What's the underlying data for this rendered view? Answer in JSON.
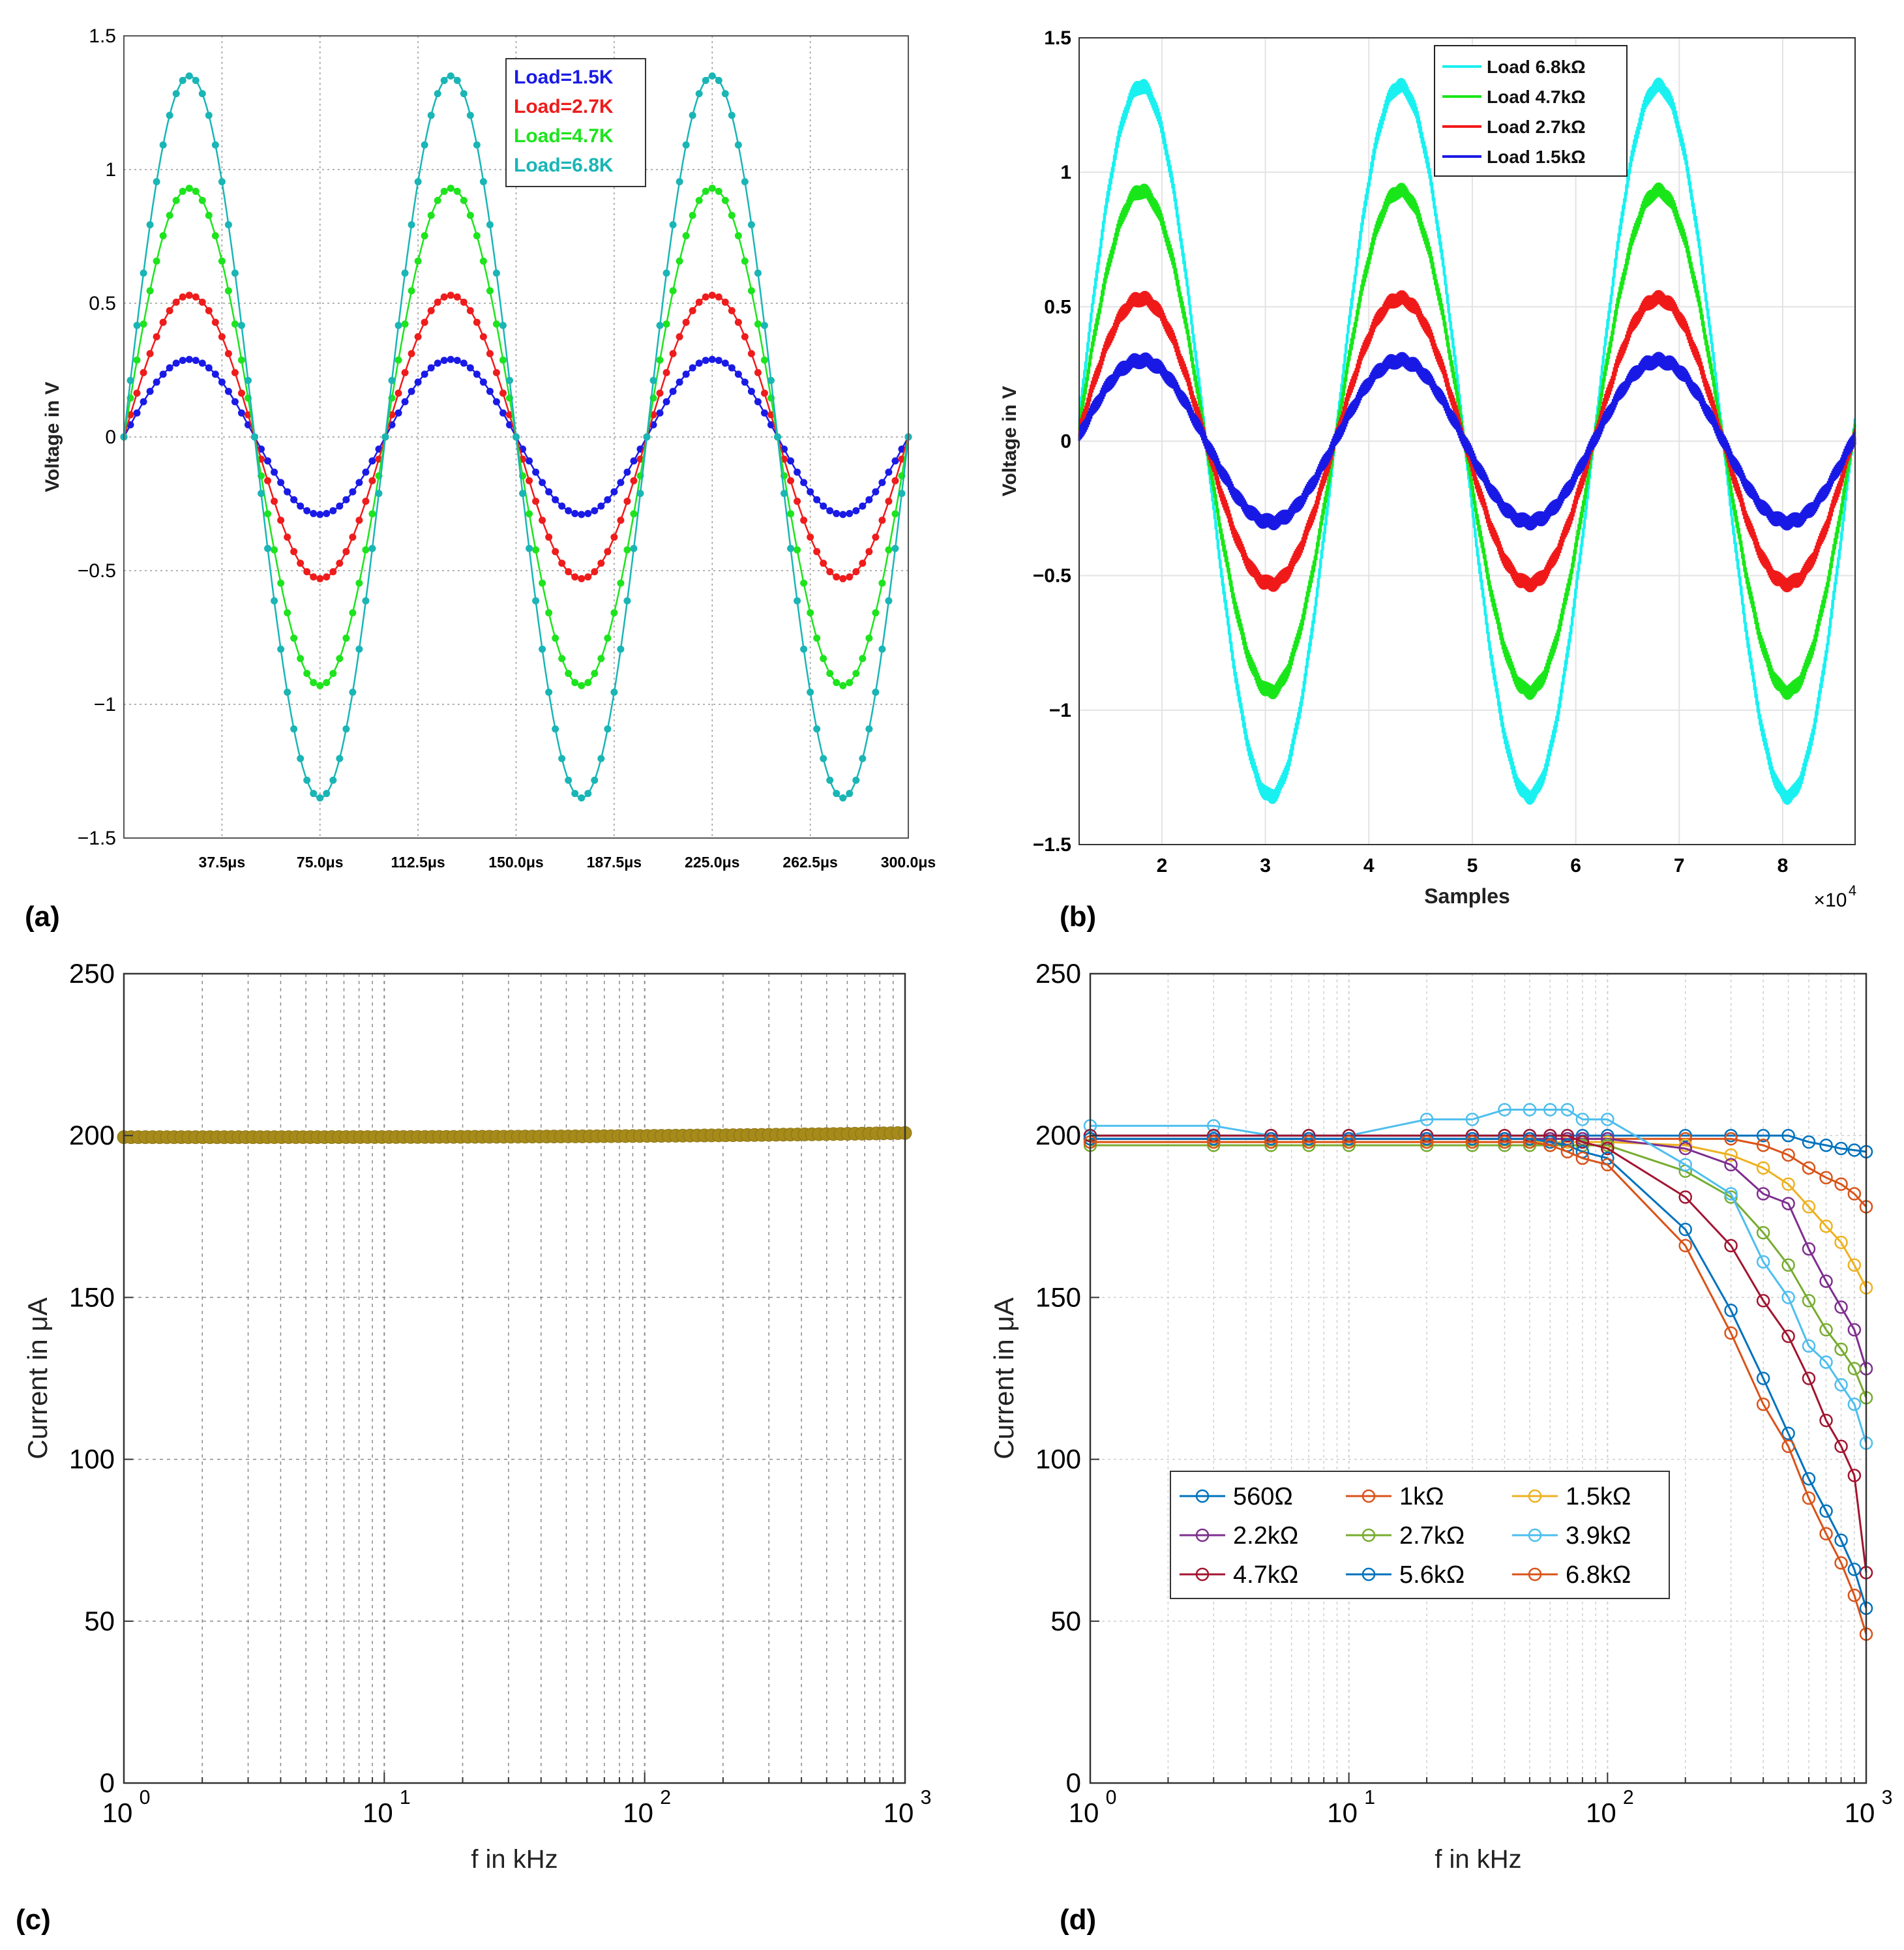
{
  "chart_data": [
    {
      "panel": "(a)",
      "type": "line",
      "title": "",
      "xlabel": "",
      "ylabel": "Voltage in V",
      "xlim": [
        0,
        300
      ],
      "ylim": [
        -1.5,
        1.5
      ],
      "x_ticks": [
        37.5,
        75,
        112.5,
        150,
        187.5,
        225,
        262.5,
        300
      ],
      "x_tick_labels": [
        "37.5μs",
        "75.0μs",
        "112.5μs",
        "150.0μs",
        "187.5μs",
        "225.0μs",
        "262.5μs",
        "300.0μs"
      ],
      "y_ticks": [
        -1.5,
        -1,
        -0.5,
        0,
        0.5,
        1,
        1.5
      ],
      "y_tick_labels": [
        "−1.5",
        "−1",
        "−0.5",
        "0",
        "0.5",
        "1",
        "1.5"
      ],
      "grid": true,
      "legend_position": "top-center",
      "period_us": 100,
      "series": [
        {
          "name": "Load=1.5K",
          "amplitude": 0.29,
          "color": "#1a1ae6"
        },
        {
          "name": "Load=2.7K",
          "amplitude": 0.53,
          "color": "#ee1c1c"
        },
        {
          "name": "Load=4.7K",
          "amplitude": 0.93,
          "color": "#1de41d"
        },
        {
          "name": "Load=6.8K",
          "amplitude": 1.35,
          "color": "#1ab5b5"
        }
      ]
    },
    {
      "panel": "(b)",
      "type": "line",
      "title": "",
      "xlabel": "Samples",
      "x_multiplier_label": "×10",
      "x_multiplier_exp": "4",
      "ylabel": "Voltage in V",
      "xlim": [
        1.2,
        8.7
      ],
      "ylim": [
        -1.5,
        1.5
      ],
      "x_ticks": [
        2,
        3,
        4,
        5,
        6,
        7,
        8
      ],
      "x_tick_labels": [
        "2",
        "3",
        "4",
        "5",
        "6",
        "7",
        "8"
      ],
      "y_ticks": [
        -1.5,
        -1,
        -0.5,
        0,
        0.5,
        1,
        1.5
      ],
      "y_tick_labels": [
        "−1.5",
        "−1",
        "−0.5",
        "0",
        "0.5",
        "1",
        "1.5"
      ],
      "grid": true,
      "legend_position": "top-center",
      "period_samples_e4": 2.5,
      "peak_at_e4": 1.8,
      "series": [
        {
          "name": "Load 6.8kΩ",
          "amplitude": 1.32,
          "color": "#19f0f0"
        },
        {
          "name": "Load 4.7kΩ",
          "amplitude": 0.93,
          "color": "#19e619"
        },
        {
          "name": "Load 2.7kΩ",
          "amplitude": 0.53,
          "color": "#f01919"
        },
        {
          "name": "Load 1.5kΩ",
          "amplitude": 0.3,
          "color": "#1919e6"
        }
      ]
    },
    {
      "panel": "(c)",
      "type": "scatter",
      "title": "",
      "xlabel": "f in kHz",
      "ylabel": "Current in μA",
      "xscale": "log",
      "xlim": [
        1,
        1000
      ],
      "ylim": [
        0,
        250
      ],
      "x_tick_labels": [
        {
          "base": "10",
          "exp": "0"
        },
        {
          "base": "10",
          "exp": "1"
        },
        {
          "base": "10",
          "exp": "2"
        },
        {
          "base": "10",
          "exp": "3"
        }
      ],
      "y_ticks": [
        0,
        50,
        100,
        150,
        200,
        250
      ],
      "y_tick_labels": [
        "0",
        "50",
        "100",
        "150",
        "200",
        "250"
      ],
      "grid": true,
      "series": [
        {
          "name": "current",
          "color": "#a68a1a",
          "f_start": 1,
          "f_end": 1000,
          "n_points": 110,
          "value_start": 199.5,
          "value_end": 200.8
        }
      ]
    },
    {
      "panel": "(d)",
      "type": "line",
      "title": "",
      "xlabel": "f in kHz",
      "ylabel": "Current in μA",
      "xscale": "log",
      "xlim": [
        1,
        1000
      ],
      "ylim": [
        0,
        250
      ],
      "x_tick_labels": [
        {
          "base": "10",
          "exp": "0"
        },
        {
          "base": "10",
          "exp": "1"
        },
        {
          "base": "10",
          "exp": "2"
        },
        {
          "base": "10",
          "exp": "3"
        }
      ],
      "y_ticks": [
        0,
        50,
        100,
        150,
        200,
        250
      ],
      "y_tick_labels": [
        "0",
        "50",
        "100",
        "150",
        "200",
        "250"
      ],
      "grid": true,
      "legend_position": "lower-center",
      "x": [
        1,
        3,
        5,
        7,
        10,
        20,
        30,
        40,
        50,
        60,
        70,
        80,
        100,
        200,
        300,
        400,
        500,
        600,
        700,
        800,
        900,
        1000
      ],
      "series": [
        {
          "name": "560Ω",
          "color": "#0072bd",
          "values": [
            200,
            200,
            200,
            200,
            200,
            200,
            200,
            200,
            200,
            200,
            200,
            200,
            200,
            200,
            200,
            200,
            200,
            198,
            197,
            196,
            195.5,
            195
          ]
        },
        {
          "name": "1kΩ",
          "color": "#d95319",
          "values": [
            199,
            199,
            199,
            199,
            199,
            199,
            199,
            199,
            199,
            199,
            199,
            199,
            199,
            199,
            199,
            197,
            194,
            190,
            187,
            185,
            182,
            178
          ]
        },
        {
          "name": "1.5kΩ",
          "color": "#edb120",
          "values": [
            198,
            198,
            198,
            198,
            198,
            198,
            198,
            198,
            198,
            198,
            198,
            198,
            198,
            197,
            194,
            190,
            185,
            178,
            172,
            167,
            160,
            153
          ]
        },
        {
          "name": "2.2kΩ",
          "color": "#7e2f8e",
          "values": [
            199,
            199,
            199,
            199,
            199,
            199,
            199,
            199,
            199,
            199,
            199,
            199,
            199,
            196,
            191,
            182,
            179,
            165,
            155,
            147,
            140,
            128
          ]
        },
        {
          "name": "2.7kΩ",
          "color": "#77ac30",
          "values": [
            197,
            197,
            197,
            197,
            197,
            197,
            197,
            197,
            197,
            197,
            197,
            197,
            197,
            189,
            181,
            170,
            160,
            149,
            140,
            134,
            128,
            119
          ]
        },
        {
          "name": "3.9kΩ",
          "color": "#4dbeee",
          "values": [
            203,
            203,
            200,
            200,
            200,
            205,
            205,
            208,
            208,
            208,
            208,
            205,
            205,
            191,
            182,
            161,
            150,
            135,
            130,
            123,
            117,
            105
          ]
        },
        {
          "name": "4.7kΩ",
          "color": "#a2142f",
          "values": [
            200,
            200,
            200,
            200,
            200,
            200,
            200,
            200,
            200,
            200,
            200,
            198,
            196,
            181,
            166,
            149,
            138,
            125,
            112,
            104,
            95,
            65
          ]
        },
        {
          "name": "5.6kΩ",
          "color": "#0072bd",
          "values": [
            199,
            199,
            199,
            199,
            199,
            199,
            199,
            199,
            199,
            198,
            197,
            195,
            193,
            171,
            146,
            125,
            108,
            94,
            84,
            75,
            66,
            54
          ]
        },
        {
          "name": "6.8kΩ",
          "color": "#d95319",
          "values": [
            198,
            198,
            198,
            198,
            198,
            198,
            198,
            198,
            198,
            197,
            195,
            193,
            191,
            166,
            139,
            117,
            104,
            88,
            77,
            68,
            58,
            46
          ]
        }
      ]
    }
  ],
  "panel_labels": [
    "(a)",
    "(b)",
    "(c)",
    "(d)"
  ]
}
